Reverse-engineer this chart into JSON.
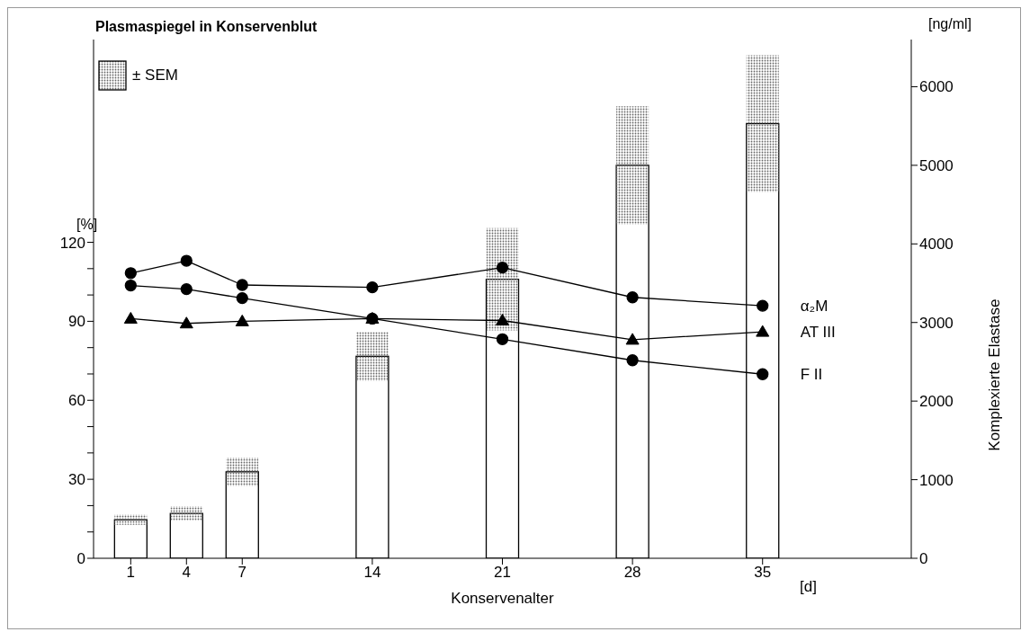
{
  "chart_data": {
    "type": "bar",
    "title": "Plasmaspiegel in Konservenblut",
    "xlabel": "Konservenalter",
    "ylabel": "[%]",
    "y2label": "Komplexierte Elastase",
    "annotations": [
      "± SEM",
      "[ng/ml]",
      "[d]"
    ],
    "x": [
      1,
      4,
      7,
      14,
      21,
      28,
      35
    ],
    "series": [
      {
        "axis": "y2",
        "color": "#ffffff",
        "values": [
          490,
          570,
          1100,
          2570,
          3550,
          5000,
          5530
        ],
        "errors": [
          65,
          90,
          180,
          310,
          650,
          750,
          870
        ]
      },
      {
        "type": "line",
        "name": "α₂M",
        "color": "#000000",
        "marker": "circle",
        "values": [
          108.3,
          113,
          103.8,
          102.9,
          110.4,
          99.1,
          95.9
        ]
      },
      {
        "type": "line",
        "name": "AT III",
        "color": "#000000",
        "marker": "triangle",
        "values": [
          91,
          89.2,
          90,
          91,
          90.3,
          83,
          86
        ]
      },
      {
        "type": "line",
        "name": "F II",
        "color": "#000000",
        "marker": "circle",
        "values": [
          103.6,
          102.2,
          98.8,
          91,
          83.2,
          75.2,
          69.9
        ]
      }
    ],
    "xlim": [
      -1,
      43
    ],
    "xticks": [
      1,
      4,
      7,
      14,
      21,
      28,
      35
    ],
    "ylim": [
      0,
      197
    ],
    "yticks": [
      0,
      {
        "value": 10,
        "label": null
      },
      {
        "value": 20,
        "label": null
      },
      30,
      {
        "value": 40,
        "label": null
      },
      {
        "value": 50,
        "label": null
      },
      60,
      {
        "value": 70,
        "label": null
      },
      {
        "value": 80,
        "label": null
      },
      90,
      {
        "value": 100,
        "label": null
      },
      {
        "value": 110,
        "label": null
      },
      120
    ],
    "y2lim": [
      0,
      6600
    ],
    "y2ticks": [
      0,
      1000,
      2000,
      3000,
      4000,
      5000,
      6000
    ],
    "line_style": "solid"
  }
}
